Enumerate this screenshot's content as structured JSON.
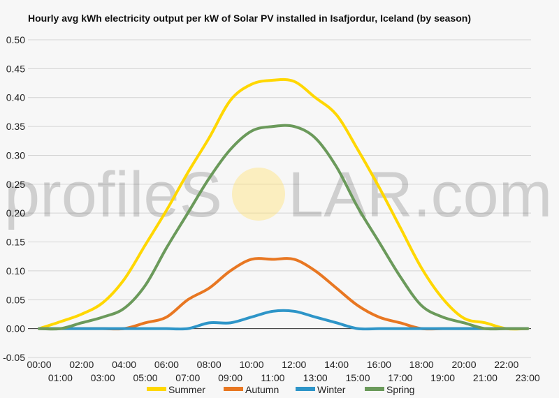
{
  "chart_data": {
    "type": "line",
    "title": "Hourly avg kWh electricity output per kW of Solar PV installed in Isafjordur, Iceland (by season)",
    "xlabel": "",
    "ylabel": "",
    "ylim": [
      -0.05,
      0.5
    ],
    "yticks": [
      "0.50",
      "0.45",
      "0.40",
      "0.35",
      "0.30",
      "0.25",
      "0.20",
      "0.15",
      "0.10",
      "0.05",
      "0.00",
      "-0.05"
    ],
    "yticks_values": [
      0.5,
      0.45,
      0.4,
      0.35,
      0.3,
      0.25,
      0.2,
      0.15,
      0.1,
      0.05,
      0.0,
      -0.05
    ],
    "x": [
      "00:00",
      "01:00",
      "02:00",
      "03:00",
      "04:00",
      "05:00",
      "06:00",
      "07:00",
      "08:00",
      "09:00",
      "10:00",
      "11:00",
      "12:00",
      "13:00",
      "14:00",
      "15:00",
      "16:00",
      "17:00",
      "18:00",
      "19:00",
      "20:00",
      "21:00",
      "22:00",
      "23:00"
    ],
    "grid": true,
    "legend": "bottom",
    "series": [
      {
        "name": "Summer",
        "color": "#ffd700",
        "values": [
          0.0,
          0.012,
          0.025,
          0.045,
          0.085,
          0.145,
          0.205,
          0.27,
          0.33,
          0.395,
          0.423,
          0.43,
          0.428,
          0.4,
          0.37,
          0.31,
          0.245,
          0.175,
          0.105,
          0.052,
          0.018,
          0.01,
          0.0,
          0.0
        ]
      },
      {
        "name": "Autumn",
        "color": "#e87722",
        "values": [
          0.0,
          0.0,
          0.0,
          0.0,
          0.0,
          0.01,
          0.02,
          0.05,
          0.07,
          0.1,
          0.12,
          0.12,
          0.12,
          0.1,
          0.07,
          0.04,
          0.02,
          0.01,
          0.0,
          0.0,
          0.0,
          0.0,
          0.0,
          0.0
        ]
      },
      {
        "name": "Winter",
        "color": "#2e95c8",
        "values": [
          0.0,
          0.0,
          0.0,
          0.0,
          0.0,
          0.0,
          0.0,
          0.0,
          0.01,
          0.01,
          0.02,
          0.03,
          0.03,
          0.02,
          0.01,
          0.0,
          0.0,
          0.0,
          0.0,
          0.0,
          0.0,
          0.0,
          0.0,
          0.0
        ]
      },
      {
        "name": "Spring",
        "color": "#6b9a5b",
        "values": [
          0.0,
          0.0,
          0.01,
          0.02,
          0.035,
          0.075,
          0.14,
          0.2,
          0.26,
          0.31,
          0.342,
          0.35,
          0.35,
          0.33,
          0.28,
          0.21,
          0.15,
          0.09,
          0.04,
          0.02,
          0.01,
          0.0,
          0.0,
          0.0
        ]
      }
    ]
  },
  "watermark": {
    "text_left": "profileS",
    "text_right": "LAR.com"
  }
}
